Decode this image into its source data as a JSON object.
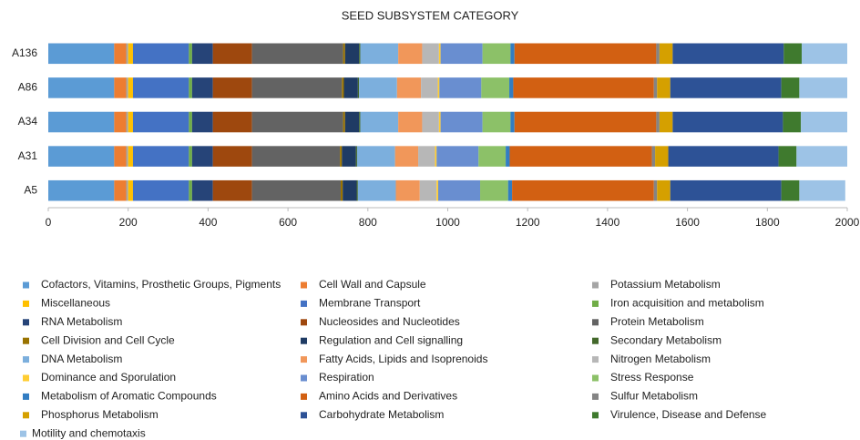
{
  "chart_data": {
    "type": "stacked-bar-horizontal",
    "title": "SEED SUBSYSTEM CATEGORY",
    "categories": [
      "A136",
      "A86",
      "A34",
      "A31",
      "A5"
    ],
    "xlim": [
      0,
      2000
    ],
    "xticks": [
      0,
      200,
      400,
      600,
      800,
      1000,
      1200,
      1400,
      1600,
      1800,
      2000
    ],
    "grid": false,
    "legend": "bottom",
    "series": [
      {
        "name": "Cofactors, Vitamins, Prosthetic Groups, Pigments",
        "color": "#5b9bd5",
        "values": [
          165,
          165,
          165,
          165,
          165
        ]
      },
      {
        "name": "Cell Wall and Capsule",
        "color": "#ed7d31",
        "values": [
          30,
          30,
          30,
          30,
          30
        ]
      },
      {
        "name": "Potassium Metabolism",
        "color": "#a5a5a5",
        "values": [
          5,
          5,
          5,
          5,
          5
        ]
      },
      {
        "name": "Miscellaneous",
        "color": "#ffc000",
        "values": [
          12,
          12,
          12,
          12,
          12
        ]
      },
      {
        "name": "Membrane Transport",
        "color": "#4472c4",
        "values": [
          140,
          140,
          140,
          140,
          140
        ]
      },
      {
        "name": "Iron acquisition and metabolism",
        "color": "#70ad47",
        "values": [
          8,
          8,
          8,
          8,
          8
        ]
      },
      {
        "name": "RNA Metabolism",
        "color": "#264478",
        "values": [
          52,
          52,
          52,
          52,
          52
        ]
      },
      {
        "name": "Nucleosides and Nucleotides",
        "color": "#9e480e",
        "values": [
          98,
          98,
          98,
          98,
          98
        ]
      },
      {
        "name": "Protein Metabolism",
        "color": "#636363",
        "values": [
          228,
          225,
          228,
          220,
          222
        ]
      },
      {
        "name": "Cell Division and Cell Cycle",
        "color": "#997300",
        "values": [
          5,
          5,
          5,
          5,
          5
        ]
      },
      {
        "name": "Regulation and Cell signalling",
        "color": "#1f3b64",
        "values": [
          35,
          35,
          35,
          35,
          35
        ]
      },
      {
        "name": "Secondary Metabolism",
        "color": "#43682b",
        "values": [
          3,
          3,
          3,
          3,
          3
        ]
      },
      {
        "name": "DNA Metabolism",
        "color": "#7cafdd",
        "values": [
          95,
          95,
          95,
          95,
          95
        ]
      },
      {
        "name": "Fatty Acids, Lipids and Isoprenoids",
        "color": "#f1975a",
        "values": [
          60,
          60,
          60,
          58,
          60
        ]
      },
      {
        "name": "Nitrogen Metabolism",
        "color": "#b7b7b7",
        "values": [
          42,
          42,
          42,
          42,
          42
        ]
      },
      {
        "name": "Dominance and Sporulation",
        "color": "#ffcd33",
        "values": [
          4,
          4,
          4,
          4,
          4
        ]
      },
      {
        "name": "Respiration",
        "color": "#698ed0",
        "values": [
          105,
          105,
          105,
          105,
          105
        ]
      },
      {
        "name": "Stress Response",
        "color": "#8cc168",
        "values": [
          70,
          70,
          70,
          68,
          70
        ]
      },
      {
        "name": "Metabolism of Aromatic Compounds",
        "color": "#327dc2",
        "values": [
          10,
          10,
          10,
          10,
          10
        ]
      },
      {
        "name": "Amino Acids and Derivatives",
        "color": "#d26012",
        "values": [
          355,
          352,
          355,
          356,
          355
        ]
      },
      {
        "name": "Sulfur Metabolism",
        "color": "#848484",
        "values": [
          8,
          8,
          8,
          8,
          8
        ]
      },
      {
        "name": "Phosphorus Metabolism",
        "color": "#d5a000",
        "values": [
          33,
          33,
          33,
          33,
          33
        ]
      },
      {
        "name": "Carbohydrate Metabolism",
        "color": "#2d5296",
        "values": [
          278,
          278,
          276,
          276,
          278
        ]
      },
      {
        "name": "Virulence, Disease and Defense",
        "color": "#3f7a2e",
        "values": [
          45,
          45,
          45,
          45,
          45
        ]
      },
      {
        "name": "Motility and chemotaxis",
        "color": "#9dc3e6",
        "values": [
          114,
          120,
          116,
          127,
          115
        ]
      }
    ]
  }
}
